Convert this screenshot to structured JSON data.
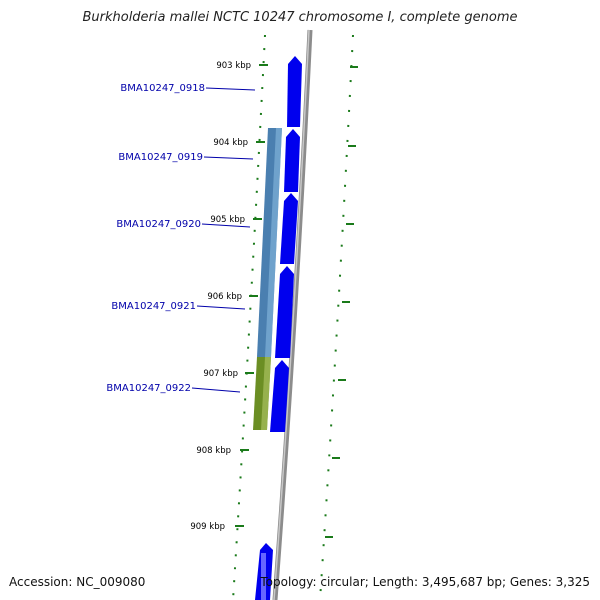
{
  "title": "Burkholderia mallei NCTC 10247 chromosome I, complete genome",
  "accession_text": "Accession: NC_009080",
  "summary_text": "Topology: circular; Length: 3,495,687 bp; Genes: 3,325",
  "ticks": [
    {
      "label": "903 kbp"
    },
    {
      "label": "904 kbp"
    },
    {
      "label": "905 kbp"
    },
    {
      "label": "906 kbp"
    },
    {
      "label": "907 kbp"
    },
    {
      "label": "908 kbp"
    },
    {
      "label": "909 kbp"
    }
  ],
  "genes": [
    {
      "label": "BMA10247_0918"
    },
    {
      "label": "BMA10247_0919"
    },
    {
      "label": "BMA10247_0920"
    },
    {
      "label": "BMA10247_0921"
    },
    {
      "label": "BMA10247_0922"
    }
  ],
  "colors": {
    "cds": "#0000ee",
    "gene_block": "#4a7fb0",
    "gene_block_green": "#6b8e23",
    "tick": "#1a7a1a",
    "label": "#0000aa",
    "backbone": "#8c8c8c"
  }
}
